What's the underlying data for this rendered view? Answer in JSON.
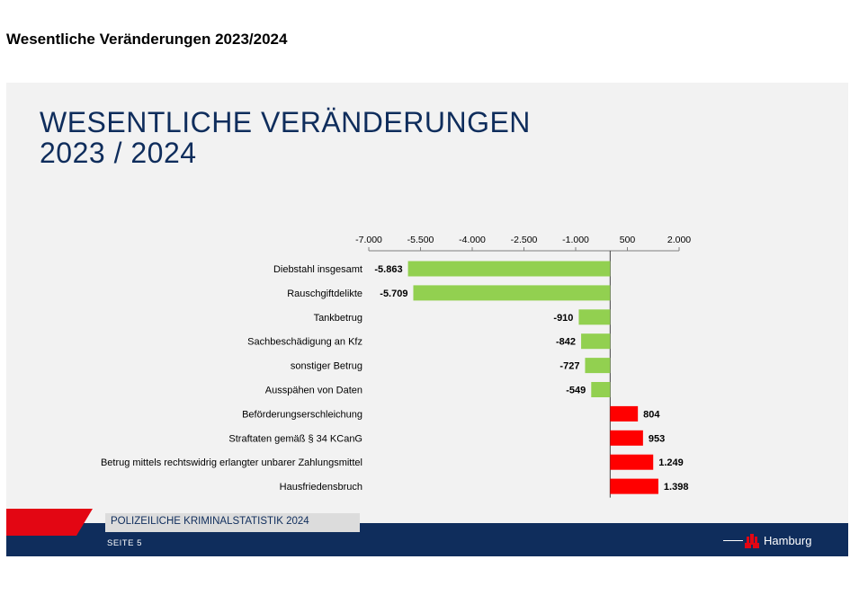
{
  "page": {
    "heading": "Wesentliche Veränderungen 2023/2024"
  },
  "slide": {
    "title_line1": "WESENTLICHE VERÄNDERUNGEN",
    "title_line2": "2023 / 2024",
    "footer_label": "POLIZEILICHE KRIMINALSTATISTIK  2024",
    "footer_page": "SEITE  5",
    "brand": "Hamburg",
    "brand_icon": "hamburg-castle-icon"
  },
  "colors": {
    "negative": "#92d050",
    "positive": "#ff0000",
    "navy": "#0f2d5c",
    "accent_red": "#e30613"
  },
  "chart_data": {
    "type": "bar",
    "orientation": "horizontal",
    "title": "",
    "xlabel": "",
    "ylabel": "",
    "xlim": [
      -7000,
      2000
    ],
    "x_ticks": [
      -7000,
      -5500,
      -4000,
      -2500,
      -1000,
      500,
      2000
    ],
    "x_tick_labels": [
      "-7.000",
      "-5.500",
      "-4.000",
      "-2.500",
      "-1.000",
      "500",
      "2.000"
    ],
    "categories": [
      "Diebstahl insgesamt",
      "Rauschgiftdelikte",
      "Tankbetrug",
      "Sachbeschädigung an Kfz",
      "sonstiger Betrug",
      "Ausspähen von Daten",
      "Beförderungserschleichung",
      "Straftaten gemäß § 34 KCanG",
      "Betrug mittels rechtswidrig erlangter unbarer Zahlungsmittel",
      "Hausfriedensbruch"
    ],
    "values": [
      -5863,
      -5709,
      -910,
      -842,
      -727,
      -549,
      804,
      953,
      1249,
      1398
    ],
    "value_labels": [
      "-5.863",
      "-5.709",
      "-910",
      "-842",
      "-727",
      "-549",
      "804",
      "953",
      "1.249",
      "1.398"
    ],
    "axis_position": "top",
    "grid": false,
    "legend": "none"
  }
}
